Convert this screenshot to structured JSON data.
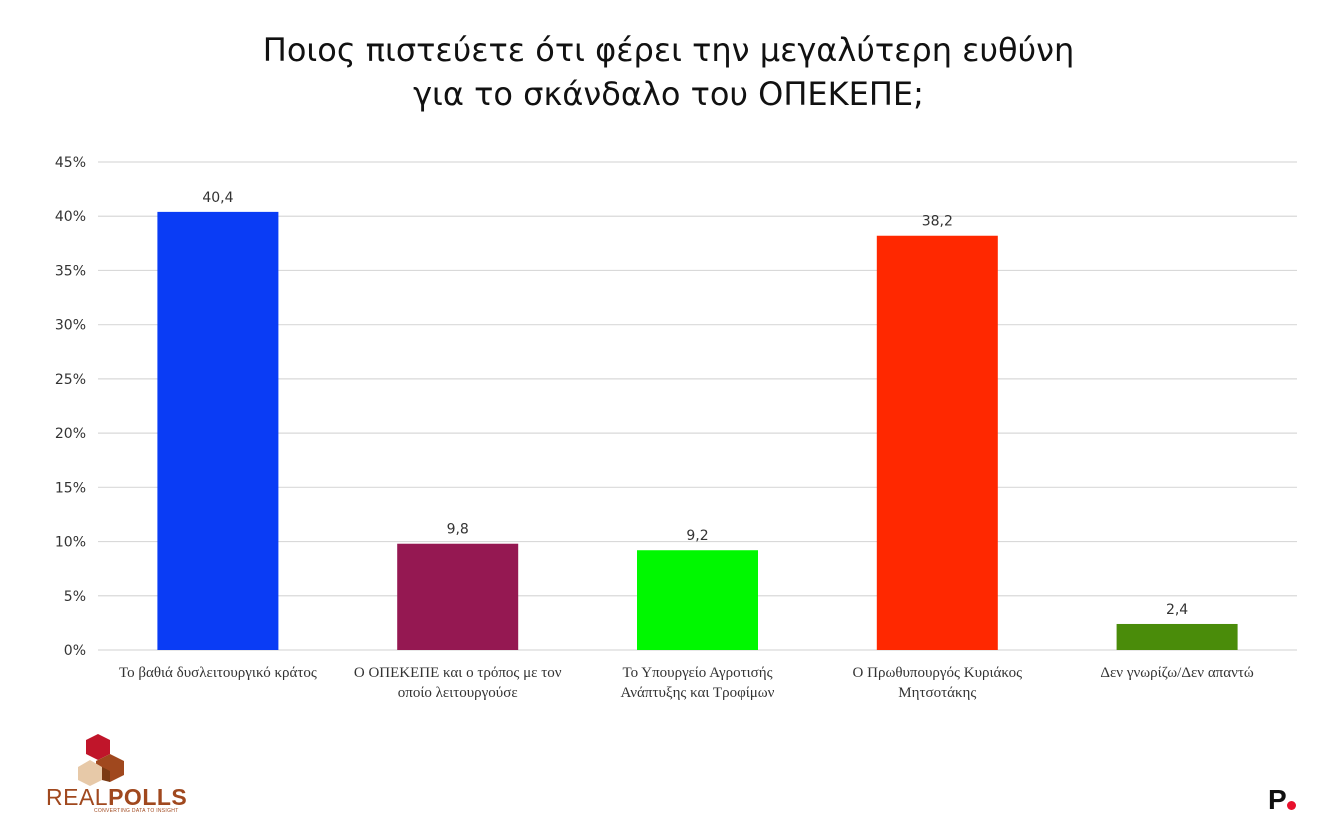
{
  "title_line1": "Ποιος πιστεύετε ότι φέρει την μεγαλύτερη ευθύνη",
  "title_line2": "για το σκάνδαλο του ΟΠΕΚΕΠΕ;",
  "chart_data": {
    "type": "bar",
    "title": "Ποιος πιστεύετε ότι φέρει την μεγαλύτερη ευθύνη για το σκάνδαλο του ΟΠΕΚΕΠΕ;",
    "categories": [
      [
        "Το βαθιά δυσλειτουργικό κράτος"
      ],
      [
        "Ο ΟΠΕΚΕΠΕ και ο τρόπος με τον",
        "οποίο λειτουργούσε"
      ],
      [
        "Το Υπουργείο Αγροτισής",
        "Ανάπτυξης και Τροφίμων"
      ],
      [
        "Ο Πρωθυπουργός Κυριάκος",
        "Μητσοτάκης"
      ],
      [
        "Δεν γνωρίζω/Δεν απαντώ"
      ]
    ],
    "values": [
      40.4,
      9.8,
      9.2,
      38.2,
      2.4
    ],
    "value_labels": [
      "40,4",
      "9,8",
      "9,2",
      "38,2",
      "2,4"
    ],
    "colors": [
      "#0a3cf5",
      "#951852",
      "#00f800",
      "#ff2800",
      "#4a8c0a"
    ],
    "ylim": [
      0,
      45
    ],
    "yticks": [
      0,
      5,
      10,
      15,
      20,
      25,
      30,
      35,
      40,
      45
    ],
    "ytick_labels": [
      "0%",
      "5%",
      "10%",
      "15%",
      "20%",
      "25%",
      "30%",
      "35%",
      "40%",
      "45%"
    ],
    "grid": true,
    "xlabel": "",
    "ylabel": ""
  },
  "logos": {
    "realpolls_a": "REAL",
    "realpolls_b": "POLLS",
    "realpolls_tagline": "CONVERTING DATA TO INSIGHT",
    "p_mark": "P"
  },
  "colors": {
    "grid": "#d9d9d9",
    "axis_text": "#333333"
  }
}
